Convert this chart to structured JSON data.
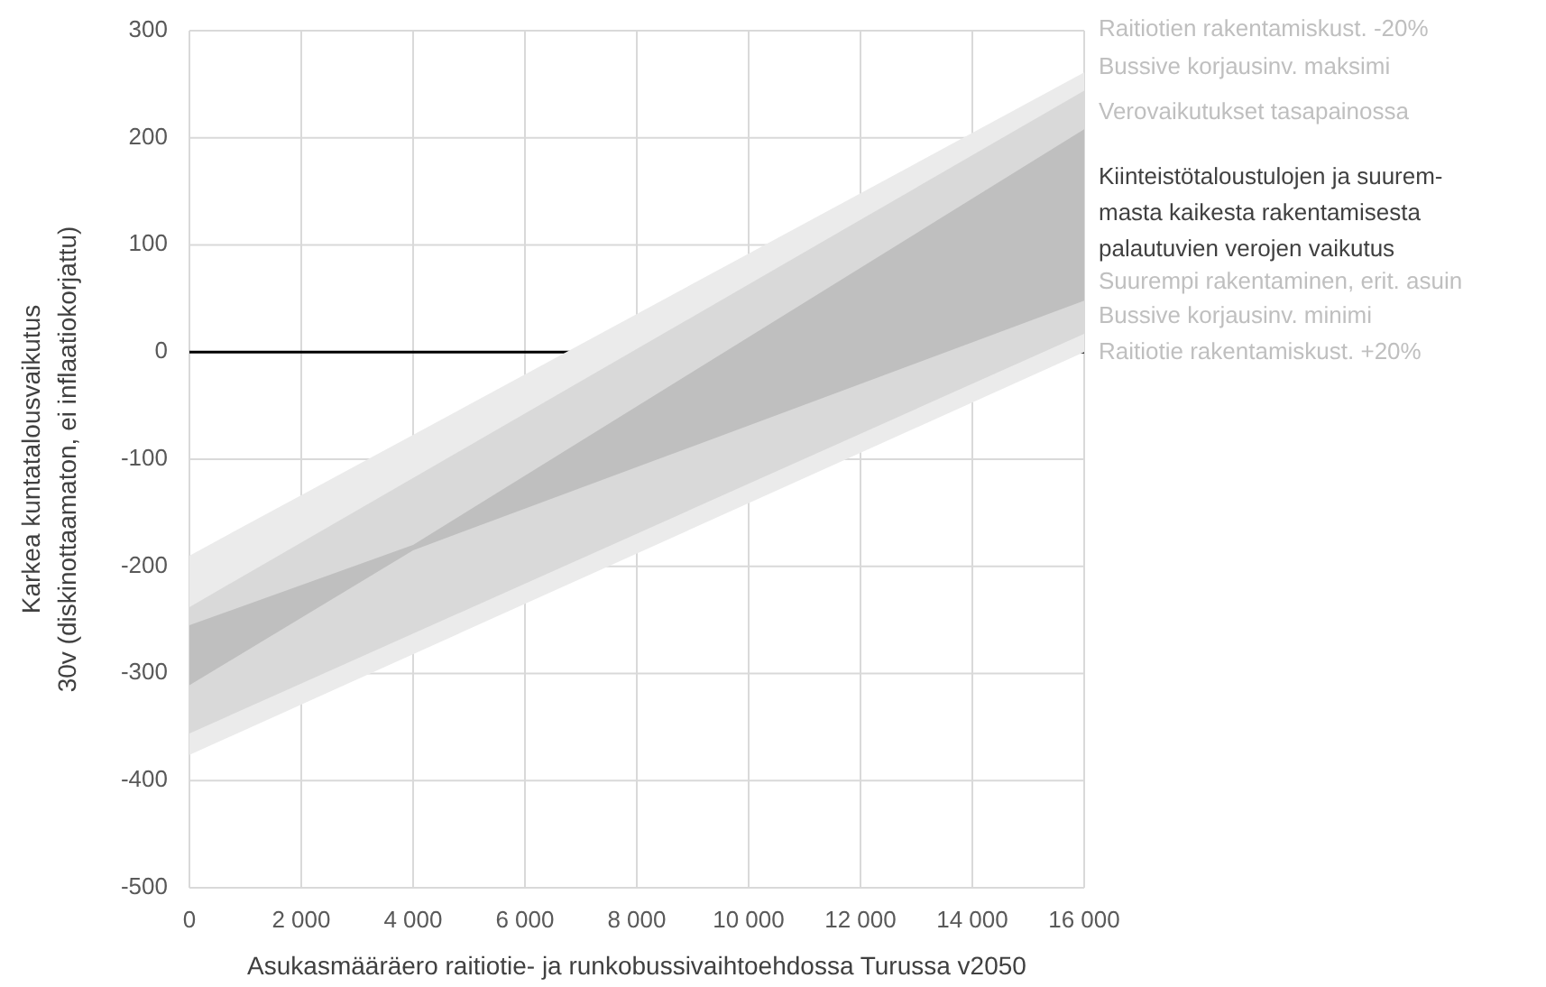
{
  "chart_data": {
    "type": "area",
    "xlabel": "Asukasmääräero raitiotie- ja runkobussivaihtoehdossa Turussa v2050",
    "ylabel": "Karkea kuntatalousvaikutus\n30v (diskinottaamaton, ei inflaatiokorjattu)",
    "xlim": [
      0,
      16000
    ],
    "xticks": [
      0,
      {
        "value": 2000,
        "label": "2 000"
      },
      {
        "value": 4000,
        "label": "4 000"
      },
      {
        "value": 6000,
        "label": "6 000"
      },
      {
        "value": 8000,
        "label": "8 000"
      },
      {
        "value": 10000,
        "label": "10 000"
      },
      {
        "value": 12000,
        "label": "12 000"
      },
      {
        "value": 14000,
        "label": "14 000"
      },
      {
        "value": 16000,
        "label": "16 000"
      }
    ],
    "ylim": [
      -500,
      300
    ],
    "yticks": [
      -500,
      -400,
      -300,
      -200,
      -100,
      0,
      100,
      200,
      300
    ],
    "grid": true,
    "series": [
      {
        "color": "#ebebeb",
        "x": [
          0,
          16000
        ],
        "values": [
          null,
          null
        ],
        "upper": [
          -190,
          261
        ],
        "lower": [
          -376,
          0
        ]
      },
      {
        "color": "#d9d9d9",
        "x": [
          0,
          16000
        ],
        "values": [
          null,
          null
        ],
        "upper": [
          -238,
          244
        ],
        "lower": [
          -356,
          17
        ]
      },
      {
        "color": "#bfbfbf",
        "x": [
          0,
          4000,
          16000
        ],
        "values": [
          null,
          null,
          null
        ],
        "upper": [
          -255,
          -180,
          208
        ],
        "lower": [
          -311,
          -185,
          48
        ]
      }
    ],
    "ref_lines": [
      {
        "axis": "y",
        "value": 0,
        "color": "#000000"
      }
    ],
    "annotations": [
      "Raitiotien rakentamiskust. -20%",
      "Bussive korjausinv. maksimi",
      "Verovaikutukset tasapainossa",
      "Kiinteistötaloustulojen ja suurem-\nmasta kaikesta rakentamisesta\npalautuvien verojen vaikutus",
      "Suurempi rakentaminen, erit. asuin",
      "Bussive korjausinv. minimi",
      "Raitiotie rakentamiskust. +20%"
    ]
  }
}
